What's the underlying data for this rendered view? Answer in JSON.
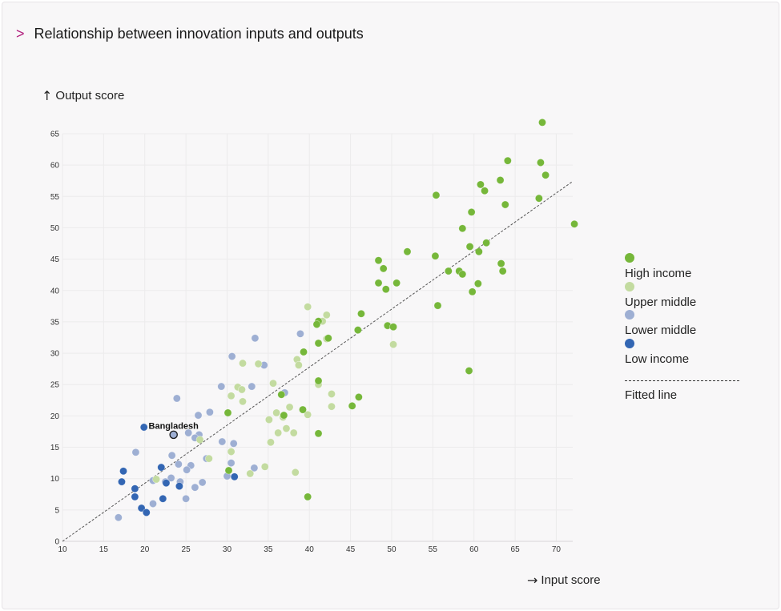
{
  "header": {
    "title": "Relationship between innovation inputs and outputs",
    "chevron": ">"
  },
  "axes": {
    "y_title": "Output score",
    "x_title": "Input score",
    "y_arrow": "↑",
    "x_arrow": "→"
  },
  "legend": {
    "items": [
      {
        "label": "High income",
        "color": "#76b73a"
      },
      {
        "label": "Upper middle",
        "color": "#c3dba0"
      },
      {
        "label": "Lower middle",
        "color": "#9eafd3"
      },
      {
        "label": "Low income",
        "color": "#3366b3"
      }
    ],
    "line_label": "Fitted line"
  },
  "chart_data": {
    "type": "scatter",
    "xlim": [
      10,
      72
    ],
    "ylim": [
      0,
      65
    ],
    "x_ticks": [
      10,
      15,
      20,
      25,
      30,
      35,
      40,
      45,
      50,
      55,
      60,
      65,
      70
    ],
    "y_ticks": [
      0,
      5,
      10,
      15,
      20,
      25,
      30,
      35,
      40,
      45,
      50,
      55,
      60,
      65
    ],
    "grid": true,
    "legend_position": "right",
    "fitted_line": {
      "x": [
        10,
        72
      ],
      "y": [
        0,
        57.4
      ]
    },
    "annotations": [
      {
        "text": "Bangladesh",
        "x": 23.5,
        "y": 17
      }
    ],
    "series": [
      {
        "name": "High income",
        "color": "#76b73a",
        "points": [
          [
            68.3,
            66.8
          ],
          [
            64.1,
            60.7
          ],
          [
            68.1,
            60.4
          ],
          [
            68.7,
            58.4
          ],
          [
            63.2,
            57.6
          ],
          [
            60.8,
            56.9
          ],
          [
            61.3,
            55.9
          ],
          [
            55.4,
            55.2
          ],
          [
            67.9,
            54.7
          ],
          [
            63.8,
            53.7
          ],
          [
            59.7,
            52.5
          ],
          [
            72.2,
            50.6
          ],
          [
            58.6,
            49.9
          ],
          [
            61.5,
            47.6
          ],
          [
            59.5,
            47.0
          ],
          [
            51.9,
            46.2
          ],
          [
            60.6,
            46.2
          ],
          [
            55.3,
            45.5
          ],
          [
            48.4,
            44.8
          ],
          [
            63.3,
            44.3
          ],
          [
            49,
            43.5
          ],
          [
            56.9,
            43.1
          ],
          [
            58.2,
            43.1
          ],
          [
            63.5,
            43.1
          ],
          [
            58.6,
            42.6
          ],
          [
            50.6,
            41.2
          ],
          [
            48.4,
            41.2
          ],
          [
            60.5,
            41.1
          ],
          [
            49.3,
            40.2
          ],
          [
            59.8,
            39.8
          ],
          [
            55.6,
            37.6
          ],
          [
            46.3,
            36.3
          ],
          [
            41.1,
            35.1
          ],
          [
            40.9,
            34.6
          ],
          [
            49.5,
            34.4
          ],
          [
            50.2,
            34.2
          ],
          [
            45.9,
            33.7
          ],
          [
            42.3,
            32.4
          ],
          [
            41.1,
            31.6
          ],
          [
            39.3,
            30.2
          ],
          [
            41.1,
            25.6
          ],
          [
            36.6,
            23.4
          ],
          [
            46,
            23.0
          ],
          [
            45.2,
            21.6
          ],
          [
            39.2,
            21.0
          ],
          [
            36.9,
            20.1
          ],
          [
            30.1,
            20.5
          ],
          [
            41.1,
            17.2
          ],
          [
            59.4,
            27.2
          ],
          [
            30.2,
            11.3
          ],
          [
            39.8,
            7.1
          ]
        ]
      },
      {
        "name": "Upper middle",
        "color": "#c3dba0",
        "points": [
          [
            55.4,
            55.2
          ],
          [
            39.8,
            37.4
          ],
          [
            42.1,
            36.1
          ],
          [
            41.6,
            35.1
          ],
          [
            42.1,
            32.3
          ],
          [
            50.2,
            31.4
          ],
          [
            38.5,
            29.0
          ],
          [
            31.9,
            28.4
          ],
          [
            38.7,
            28.1
          ],
          [
            33.8,
            28.3
          ],
          [
            41.1,
            25.0
          ],
          [
            35.6,
            25.2
          ],
          [
            31.3,
            24.6
          ],
          [
            31.8,
            24.2
          ],
          [
            30.5,
            23.2
          ],
          [
            42.7,
            23.5
          ],
          [
            31.9,
            22.3
          ],
          [
            37.6,
            21.4
          ],
          [
            42.7,
            21.5
          ],
          [
            36,
            20.5
          ],
          [
            36.8,
            19.8
          ],
          [
            39.8,
            20.2
          ],
          [
            35.1,
            19.4
          ],
          [
            37.2,
            18.0
          ],
          [
            38.1,
            17.3
          ],
          [
            36.2,
            17.3
          ],
          [
            26.7,
            16.2
          ],
          [
            35.3,
            15.8
          ],
          [
            30.5,
            14.3
          ],
          [
            27.8,
            13.2
          ],
          [
            34.6,
            11.9
          ],
          [
            21.4,
            9.9
          ],
          [
            32.8,
            10.8
          ],
          [
            38.3,
            11.0
          ]
        ]
      },
      {
        "name": "Lower middle",
        "color": "#9eafd3",
        "points": [
          [
            33.4,
            32.4
          ],
          [
            38.9,
            33.1
          ],
          [
            30.6,
            29.5
          ],
          [
            34.5,
            28.1
          ],
          [
            33,
            24.7
          ],
          [
            29.3,
            24.7
          ],
          [
            37,
            23.7
          ],
          [
            23.9,
            22.8
          ],
          [
            27.9,
            20.6
          ],
          [
            26.5,
            20.1
          ],
          [
            23.5,
            17.0
          ],
          [
            25.3,
            17.3
          ],
          [
            26.6,
            17.0
          ],
          [
            26.1,
            16.5
          ],
          [
            29.4,
            15.9
          ],
          [
            30.8,
            15.6
          ],
          [
            18.9,
            14.2
          ],
          [
            23.3,
            13.7
          ],
          [
            27.5,
            13.2
          ],
          [
            30.5,
            12.5
          ],
          [
            24.1,
            12.3
          ],
          [
            25.6,
            12.1
          ],
          [
            25.1,
            11.4
          ],
          [
            33.3,
            11.7
          ],
          [
            23.2,
            10.1
          ],
          [
            24.3,
            9.5
          ],
          [
            21,
            9.7
          ],
          [
            27,
            9.4
          ],
          [
            22.5,
            9.5
          ],
          [
            26.1,
            8.6
          ],
          [
            25,
            6.8
          ],
          [
            21,
            6.0
          ],
          [
            16.8,
            3.8
          ],
          [
            30,
            10.4
          ]
        ]
      },
      {
        "name": "Low income",
        "color": "#3366b3",
        "points": [
          [
            19.9,
            18.2
          ],
          [
            17.4,
            11.2
          ],
          [
            17.2,
            9.5
          ],
          [
            22,
            11.8
          ],
          [
            18.8,
            8.4
          ],
          [
            22.6,
            9.3
          ],
          [
            24.2,
            8.8
          ],
          [
            18.8,
            7.1
          ],
          [
            22.2,
            6.8
          ],
          [
            19.6,
            5.3
          ],
          [
            20.2,
            4.6
          ],
          [
            30.9,
            10.3
          ]
        ]
      }
    ]
  }
}
